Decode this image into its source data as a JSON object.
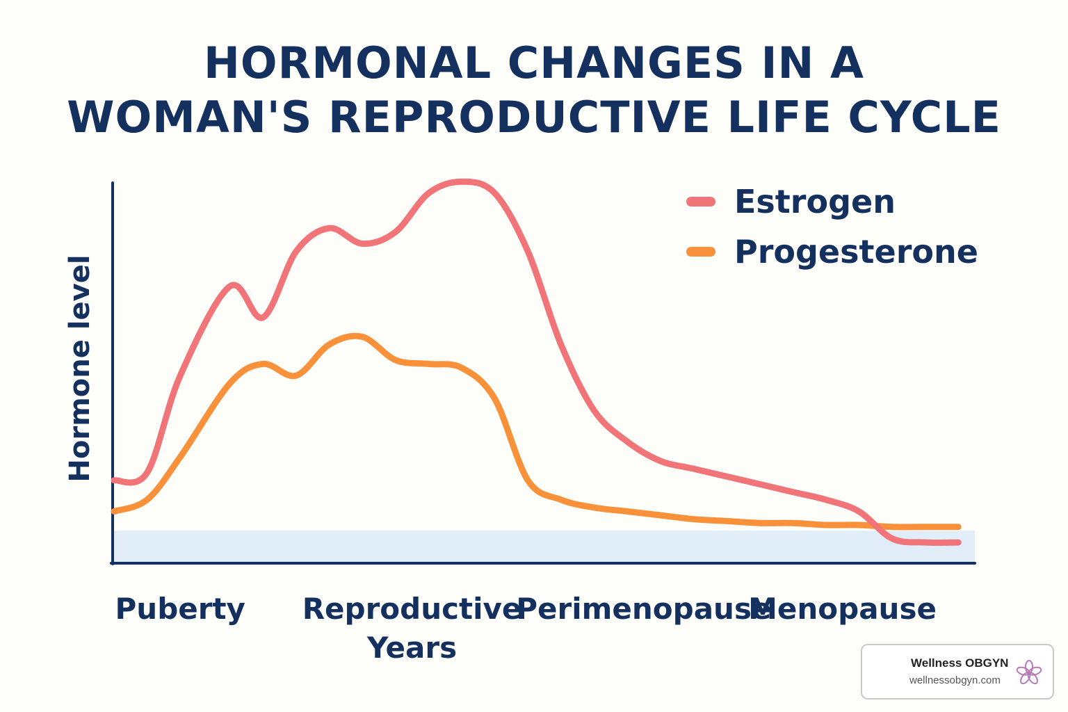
{
  "chart_data": {
    "type": "line",
    "title_lines": [
      "HORMONAL CHANGES IN A",
      "WOMAN'S REPRODUCTIVE LIFE CYCLE"
    ],
    "ylabel": "Hormone level",
    "xlabel": "",
    "categories": [
      "Puberty",
      "Reproductive Years",
      "Perimenopause",
      "Menopause"
    ],
    "category_lines": [
      [
        "Puberty"
      ],
      [
        "Reproductive",
        "Years"
      ],
      [
        "Perimenopause"
      ],
      [
        "Menopause"
      ]
    ],
    "category_positions": [
      2.0,
      9.0,
      16.0,
      22.0
    ],
    "xlim": [
      0,
      26
    ],
    "ylim": [
      0,
      100
    ],
    "grid": false,
    "legend_position": "top-right",
    "baseline_band": [
      0,
      8
    ],
    "series": [
      {
        "name": "Estrogen",
        "color": "#f07478",
        "x": [
          0,
          1,
          2,
          3.5,
          4.5,
          5.5,
          6.5,
          7.5,
          8.5,
          9.5,
          10.5,
          11.5,
          12.5,
          13.5,
          14.5,
          15.5,
          16.5,
          17.5,
          18.5,
          19.5,
          20.5,
          21.5,
          22.5,
          23.5,
          24.5,
          25.5
        ],
        "y": [
          21,
          23,
          48,
          71,
          63,
          80,
          86,
          82,
          85,
          95,
          98,
          95,
          80,
          56,
          39,
          31,
          26,
          24,
          22,
          20,
          18,
          16,
          13,
          6,
          5,
          5
        ]
      },
      {
        "name": "Progesterone",
        "color": "#f8913a",
        "x": [
          0,
          1,
          2,
          3.5,
          4.5,
          5.5,
          6.5,
          7.5,
          8.5,
          9.5,
          10.5,
          11.5,
          12.5,
          13.5,
          14.5,
          15.5,
          16.5,
          17.5,
          18.5,
          19.5,
          20.5,
          21.5,
          22.5,
          23.5,
          24.5,
          25.5
        ],
        "y": [
          13,
          16,
          27,
          46,
          51,
          48,
          56,
          58,
          52,
          51,
          50,
          42,
          21,
          16,
          14,
          13,
          12,
          11,
          10.5,
          10,
          10,
          9.5,
          9.5,
          9,
          9,
          9
        ]
      }
    ]
  },
  "badge": {
    "name": "Wellness OBGYN",
    "url": "wellnessobgyn.com",
    "logo_icon": "flower-icon",
    "logo_color": "#b57ab8"
  }
}
